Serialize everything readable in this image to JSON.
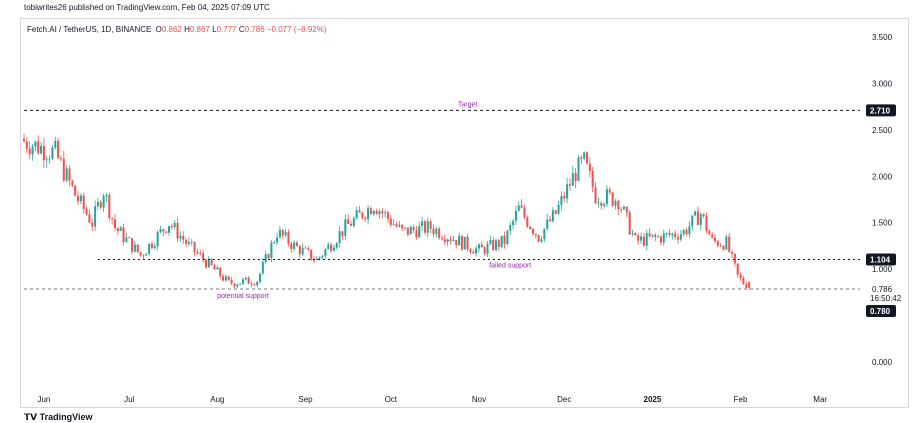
{
  "header": {
    "publisher": "tobiwrites26 published on TradingView.com, Feb 04, 2025 07:09 UTC",
    "symbol": "Fetch.AI / TetherUS, 1D, BINANCE",
    "ohlc": {
      "o_label": "O",
      "o": "0.862",
      "h_label": "H",
      "h": "0.867",
      "l_label": "L",
      "l": "0.777",
      "c_label": "C",
      "c": "0.786",
      "change": "−0.077 (−8.92%)"
    }
  },
  "footer": {
    "brand": "TradingView"
  },
  "colors": {
    "up": "#26a69a",
    "down": "#ef5350",
    "annotation": "#9c27b0",
    "line": "#131722"
  },
  "chart_data": {
    "type": "candlestick",
    "title": "Fetch.AI / TetherUS, 1D, BINANCE",
    "ylim": [
      0,
      3.5
    ],
    "y_ticks": [
      "0.000",
      "1.000",
      "1.500",
      "2.000",
      "2.500",
      "3.000",
      "3.500"
    ],
    "x_ticks": [
      "Jun",
      "Jul",
      "Aug",
      "Sep",
      "Oct",
      "Nov",
      "Dec",
      "2025",
      "Feb",
      "Mar"
    ],
    "price_labels": {
      "current": "0.786",
      "countdown": "16:50:42",
      "low_tag": "0.780"
    },
    "levels": [
      {
        "label": "Target",
        "value": 2.71,
        "tag": "2.710"
      },
      {
        "label": "",
        "value": 1.104,
        "tag": "1.104"
      },
      {
        "label": "",
        "value": 0.786,
        "tag": ""
      }
    ],
    "annotations": [
      {
        "text": "Target"
      },
      {
        "text": "failed support"
      },
      {
        "text": "potential support"
      }
    ],
    "closes": [
      {
        "date": "2024-05-25",
        "close": 2.38
      },
      {
        "date": "2024-06-05",
        "close": 2.25
      },
      {
        "date": "2024-06-12",
        "close": 1.8
      },
      {
        "date": "2024-06-18",
        "close": 1.5
      },
      {
        "date": "2024-06-22",
        "close": 1.85
      },
      {
        "date": "2024-06-26",
        "close": 1.45
      },
      {
        "date": "2024-07-05",
        "close": 1.15
      },
      {
        "date": "2024-07-15",
        "close": 1.5
      },
      {
        "date": "2024-07-22",
        "close": 1.25
      },
      {
        "date": "2024-08-05",
        "close": 0.85
      },
      {
        "date": "2024-08-15",
        "close": 0.88
      },
      {
        "date": "2024-08-22",
        "close": 1.4
      },
      {
        "date": "2024-08-28",
        "close": 1.25
      },
      {
        "date": "2024-09-05",
        "close": 1.1
      },
      {
        "date": "2024-09-15",
        "close": 1.45
      },
      {
        "date": "2024-09-25",
        "close": 1.7
      },
      {
        "date": "2024-10-05",
        "close": 1.4
      },
      {
        "date": "2024-10-15",
        "close": 1.45
      },
      {
        "date": "2024-10-25",
        "close": 1.3
      },
      {
        "date": "2024-11-01",
        "close": 1.2
      },
      {
        "date": "2024-11-10",
        "close": 1.3
      },
      {
        "date": "2024-11-15",
        "close": 1.65
      },
      {
        "date": "2024-11-22",
        "close": 1.35
      },
      {
        "date": "2024-11-28",
        "close": 1.6
      },
      {
        "date": "2024-12-05",
        "close": 2.05
      },
      {
        "date": "2024-12-08",
        "close": 2.15
      },
      {
        "date": "2024-12-12",
        "close": 1.8
      },
      {
        "date": "2024-12-20",
        "close": 1.75
      },
      {
        "date": "2024-12-26",
        "close": 1.3
      },
      {
        "date": "2025-01-05",
        "close": 1.35
      },
      {
        "date": "2025-01-12",
        "close": 1.4
      },
      {
        "date": "2025-01-18",
        "close": 1.6
      },
      {
        "date": "2025-01-22",
        "close": 1.3
      },
      {
        "date": "2025-01-27",
        "close": 1.28
      },
      {
        "date": "2025-01-31",
        "close": 0.92
      },
      {
        "date": "2025-02-04",
        "close": 0.786
      }
    ]
  }
}
